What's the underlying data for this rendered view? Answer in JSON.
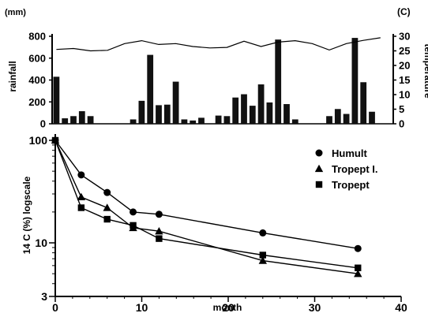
{
  "chart_data": [
    {
      "type": "bar",
      "title": "",
      "ylabel": "rainfall",
      "yunit": "(mm)",
      "ylim": [
        0,
        800
      ],
      "yticks": [
        0,
        200,
        400,
        600,
        800
      ],
      "xlim": [
        0,
        39
      ],
      "x": [
        0,
        1,
        2,
        3,
        4,
        5,
        6,
        7,
        8,
        9,
        10,
        11,
        12,
        13,
        14,
        15,
        16,
        17,
        18,
        19,
        20,
        21,
        22,
        23,
        24,
        25,
        26,
        27,
        28,
        29,
        30,
        31,
        32,
        33,
        34,
        35,
        36,
        37,
        38,
        39
      ],
      "values": [
        430,
        50,
        70,
        115,
        70,
        0,
        0,
        0,
        0,
        40,
        210,
        630,
        170,
        175,
        385,
        40,
        30,
        55,
        0,
        75,
        70,
        240,
        270,
        165,
        360,
        195,
        770,
        180,
        40,
        0,
        0,
        0,
        70,
        135,
        90,
        785,
        380,
        110,
        0,
        0
      ],
      "temperature": {
        "ylabel": "temperature",
        "yunit": "(C)",
        "ylim": [
          0,
          30
        ],
        "yticks": [
          0,
          5,
          10,
          15,
          20,
          25,
          30
        ],
        "x": [
          0,
          2,
          4,
          6,
          8,
          10,
          12,
          14,
          16,
          18,
          20,
          22,
          24,
          26,
          28,
          30,
          32,
          34,
          36,
          38
        ],
        "values": [
          25.5,
          25.8,
          25.0,
          25.2,
          27.5,
          28.5,
          27.2,
          27.5,
          26.5,
          26.0,
          26.2,
          28.3,
          26.5,
          28.0,
          28.5,
          27.5,
          25.3,
          27.5,
          28.6,
          29.5
        ]
      }
    },
    {
      "type": "line",
      "title": "",
      "ylabel": "14 C (%) logscale",
      "xlabel": "month",
      "yscale": "log",
      "ylim": [
        3,
        100
      ],
      "yticks": [
        3,
        10,
        100
      ],
      "xlim": [
        0,
        40
      ],
      "xticks": [
        0,
        10,
        20,
        30,
        40
      ],
      "legend_position": "top-right",
      "series": [
        {
          "name": "Humult",
          "marker": "circle",
          "x": [
            0,
            3,
            6,
            9,
            12,
            24,
            35
          ],
          "values": [
            100,
            46,
            31,
            20,
            19,
            12.5,
            8.8
          ]
        },
        {
          "name": "Tropept I.",
          "marker": "triangle",
          "x": [
            0,
            3,
            6,
            9,
            12,
            24,
            35
          ],
          "values": [
            100,
            28,
            22,
            14,
            13,
            6.7,
            5.0
          ]
        },
        {
          "name": "Tropept",
          "marker": "square",
          "x": [
            0,
            3,
            6,
            9,
            12,
            24,
            35
          ],
          "values": [
            100,
            22,
            17,
            14.8,
            11,
            7.6,
            5.7
          ]
        }
      ]
    }
  ]
}
